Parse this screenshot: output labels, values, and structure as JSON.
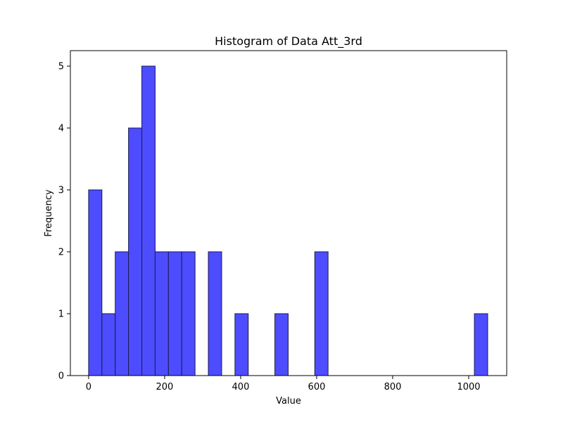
{
  "chart_data": {
    "type": "bar",
    "title": "Histogram of Data Att_3rd",
    "xlabel": "Value",
    "ylabel": "Frequency",
    "xlim": [
      -48,
      1100
    ],
    "ylim": [
      0,
      5.25
    ],
    "x_ticks": [
      0,
      200,
      400,
      600,
      800,
      1000
    ],
    "y_ticks": [
      0,
      1,
      2,
      3,
      4,
      5
    ],
    "bin_width": 35,
    "bins": [
      {
        "start": 0,
        "count": 3
      },
      {
        "start": 35,
        "count": 1
      },
      {
        "start": 70,
        "count": 2
      },
      {
        "start": 105,
        "count": 4
      },
      {
        "start": 140,
        "count": 5
      },
      {
        "start": 175,
        "count": 2
      },
      {
        "start": 210,
        "count": 2
      },
      {
        "start": 245,
        "count": 2
      },
      {
        "start": 315,
        "count": 2
      },
      {
        "start": 385,
        "count": 1
      },
      {
        "start": 490,
        "count": 1
      },
      {
        "start": 595,
        "count": 2
      },
      {
        "start": 1015,
        "count": 1
      }
    ],
    "bar_color": "#4d4dff",
    "edge_color": "#1a1a4d",
    "grid": false,
    "legend": "none"
  }
}
